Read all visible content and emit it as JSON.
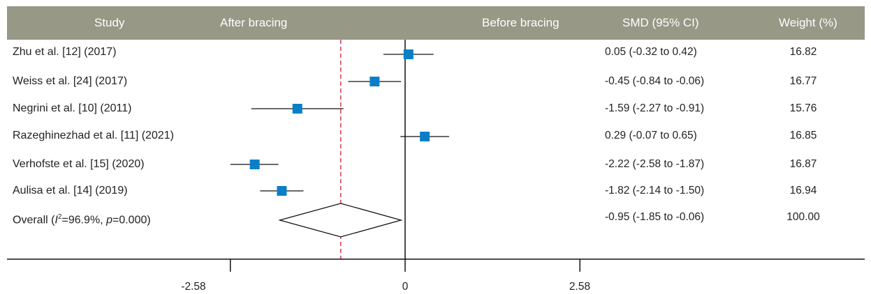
{
  "header": {
    "study": "Study",
    "after": "After bracing",
    "before": "Before bracing",
    "smd": "SMD (95% CI)",
    "weight": "Weight (%)"
  },
  "colors": {
    "header_bg": "#979885",
    "marker": "#0a7fc7",
    "reference_line": "#d8364a"
  },
  "chart_data": {
    "type": "forest",
    "xlim": [
      -3.45,
      3.45
    ],
    "reference_line": -0.95,
    "ticks": [
      {
        "value": -2.58,
        "label": "-2.58"
      },
      {
        "value": 0,
        "label": "0"
      },
      {
        "value": 2.58,
        "label": "2.58"
      }
    ],
    "studies": [
      {
        "label": "Zhu et al. [12] (2017)",
        "smd": 0.05,
        "lower": -0.32,
        "upper": 0.42,
        "ci_text": "0.05 (-0.32 to 0.42)",
        "weight": "16.82"
      },
      {
        "label": "Weiss et al. [24] (2017)",
        "smd": -0.45,
        "lower": -0.84,
        "upper": -0.06,
        "ci_text": "-0.45 (-0.84 to -0.06)",
        "weight": "16.77"
      },
      {
        "label": "Negrini et al. [10] (2011)",
        "smd": -1.59,
        "lower": -2.27,
        "upper": -0.91,
        "ci_text": "-1.59 (-2.27 to -0.91)",
        "weight": "15.76"
      },
      {
        "label": "Razeghinezhad et al. [11] (2021)",
        "smd": 0.29,
        "lower": -0.07,
        "upper": 0.65,
        "ci_text": "0.29 (-0.07 to 0.65)",
        "weight": "16.85"
      },
      {
        "label": "Verhofste et al. [15] (2020)",
        "smd": -2.22,
        "lower": -2.58,
        "upper": -1.87,
        "ci_text": "-2.22 (-2.58 to -1.87)",
        "weight": "16.87"
      },
      {
        "label": "Aulisa et al. [14] (2019)",
        "smd": -1.82,
        "lower": -2.14,
        "upper": -1.5,
        "ci_text": "-1.82 (-2.14 to -1.50)",
        "weight": "16.94"
      }
    ],
    "overall": {
      "label_prefix": "Overall (",
      "label_i": "I",
      "label_sup": "2",
      "label_mid": "=96.9%, ",
      "label_p": "p",
      "label_suffix": "=0.000)",
      "smd": -0.95,
      "lower": -1.85,
      "upper": -0.06,
      "ci_text": "-0.95 (-1.85 to -0.06)",
      "weight": "100.00"
    }
  }
}
